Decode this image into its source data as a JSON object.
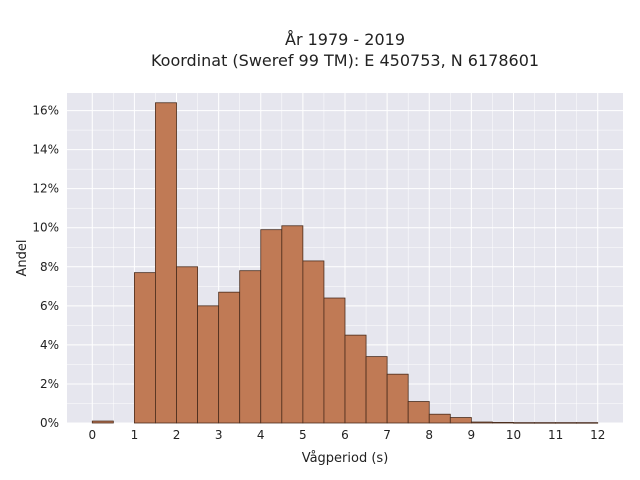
{
  "chart_data": {
    "type": "bar",
    "title": "År 1979 - 2019",
    "subtitle": "Koordinat (Sweref 99 TM): E 450753, N 6178601",
    "xlabel": "Vågperiod (s)",
    "ylabel": "Andel",
    "bin_width": 0.5,
    "xlim": [
      -0.6,
      12.6
    ],
    "ylim": [
      0,
      16.9
    ],
    "x_ticks": [
      0,
      1,
      2,
      3,
      4,
      5,
      6,
      7,
      8,
      9,
      10,
      11,
      12
    ],
    "x_tick_labels": [
      "0",
      "1",
      "2",
      "3",
      "4",
      "5",
      "6",
      "7",
      "8",
      "9",
      "10",
      "11",
      "12"
    ],
    "y_ticks": [
      0,
      2,
      4,
      6,
      8,
      10,
      12,
      14,
      16
    ],
    "y_tick_labels": [
      "0%",
      "2%",
      "4%",
      "6%",
      "8%",
      "10%",
      "12%",
      "14%",
      "16%"
    ],
    "grid": true,
    "bins": [
      {
        "start": 0.0,
        "value": 0.1
      },
      {
        "start": 0.5,
        "value": 0.0
      },
      {
        "start": 1.0,
        "value": 7.7
      },
      {
        "start": 1.5,
        "value": 16.4
      },
      {
        "start": 2.0,
        "value": 8.0
      },
      {
        "start": 2.5,
        "value": 6.0
      },
      {
        "start": 3.0,
        "value": 6.7
      },
      {
        "start": 3.5,
        "value": 7.8
      },
      {
        "start": 4.0,
        "value": 9.9
      },
      {
        "start": 4.5,
        "value": 10.1
      },
      {
        "start": 5.0,
        "value": 8.3
      },
      {
        "start": 5.5,
        "value": 6.4
      },
      {
        "start": 6.0,
        "value": 4.5
      },
      {
        "start": 6.5,
        "value": 3.4
      },
      {
        "start": 7.0,
        "value": 2.5
      },
      {
        "start": 7.5,
        "value": 1.1
      },
      {
        "start": 8.0,
        "value": 0.45
      },
      {
        "start": 8.5,
        "value": 0.28
      },
      {
        "start": 9.0,
        "value": 0.05
      },
      {
        "start": 9.5,
        "value": 0.03
      },
      {
        "start": 10.0,
        "value": 0.02
      },
      {
        "start": 10.5,
        "value": 0.02
      },
      {
        "start": 11.0,
        "value": 0.02
      },
      {
        "start": 11.5,
        "value": 0.02
      }
    ],
    "colors": {
      "bar": "#c07a55",
      "bar_edge": "#4a2c1c",
      "plot_bg": "#e6e6ee",
      "grid": "#ffffff"
    }
  }
}
